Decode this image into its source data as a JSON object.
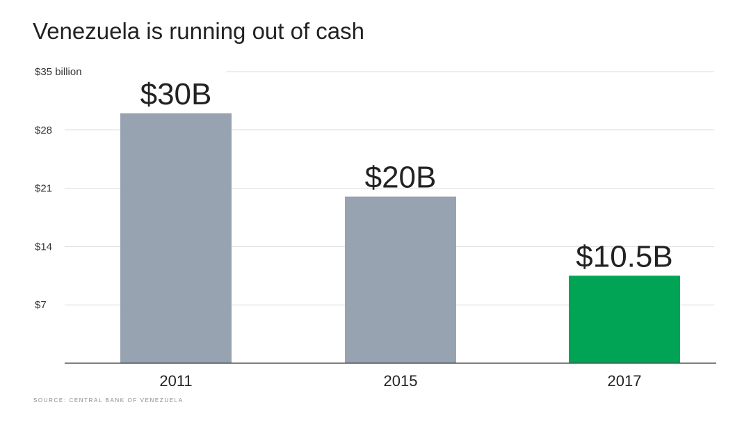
{
  "chart_data": {
    "type": "bar",
    "title": "Venezuela is running out of cash",
    "source": "SOURCE: CENTRAL BANK OF VENEZUELA",
    "categories": [
      "2011",
      "2015",
      "2017"
    ],
    "values": [
      30,
      20,
      10.5
    ],
    "data_labels": [
      "$30B",
      "$20B",
      "$10.5B"
    ],
    "bar_colors": [
      "#97a3b1",
      "#97a3b1",
      "#00a454"
    ],
    "ylim": [
      0,
      35
    ],
    "yticks": [
      {
        "value": 35,
        "label": "$35 billion"
      },
      {
        "value": 28,
        "label": "$28"
      },
      {
        "value": 21,
        "label": "$21"
      },
      {
        "value": 14,
        "label": "$14"
      },
      {
        "value": 7,
        "label": "$7"
      }
    ],
    "grid": true,
    "xlabel": "",
    "ylabel": ""
  }
}
